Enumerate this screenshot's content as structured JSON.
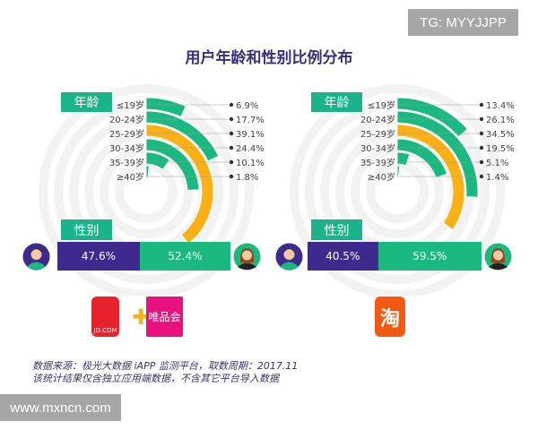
{
  "watermark_top": "TG: MYYJJPP",
  "watermark_bottom": "www.mxncn.com",
  "title": "用户年龄和性别比例分布",
  "age_label": "年龄",
  "gender_label": "性别",
  "colors": {
    "bar": "#1bb97f",
    "highlight": "#fbb116",
    "male": "#3e2a8d",
    "female": "#1bb97f",
    "label_box": "#1ab38a"
  },
  "chart_data": [
    {
      "type": "radial-bar",
      "platform": "JD.COM + 唯品会",
      "categories": [
        "≤19岁",
        "20-24岁",
        "25-29岁",
        "30-34岁",
        "35-39岁",
        "≥40岁"
      ],
      "values": [
        6.9,
        17.7,
        39.1,
        24.4,
        10.1,
        1.8
      ],
      "value_labels": [
        "6.9%",
        "17.7%",
        "39.1%",
        "24.4%",
        "10.1%",
        "1.8%"
      ],
      "highlight_index": 2,
      "gender": {
        "male": 47.6,
        "female": 52.4,
        "male_label": "47.6%",
        "female_label": "52.4%"
      }
    },
    {
      "type": "radial-bar",
      "platform": "淘宝",
      "categories": [
        "≤19岁",
        "20-24岁",
        "25-29岁",
        "30-34岁",
        "35-39岁",
        "≥40岁"
      ],
      "values": [
        13.4,
        26.1,
        34.5,
        19.5,
        5.1,
        1.4
      ],
      "value_labels": [
        "13.4%",
        "26.1%",
        "34.5%",
        "19.5%",
        "5.1%",
        "1.4%"
      ],
      "highlight_index": 2,
      "gender": {
        "male": 40.5,
        "female": 59.5,
        "male_label": "40.5%",
        "female_label": "59.5%"
      }
    }
  ],
  "logos": {
    "jd": "JD.COM",
    "vip": "唯品会",
    "taobao": "淘"
  },
  "footer": {
    "line1": "数据来源：极光大数据 iAPP 监测平台，取数周期：2017.11",
    "line2": "该统计结果仅含独立应用端数据，不含其它平台导入数据"
  }
}
